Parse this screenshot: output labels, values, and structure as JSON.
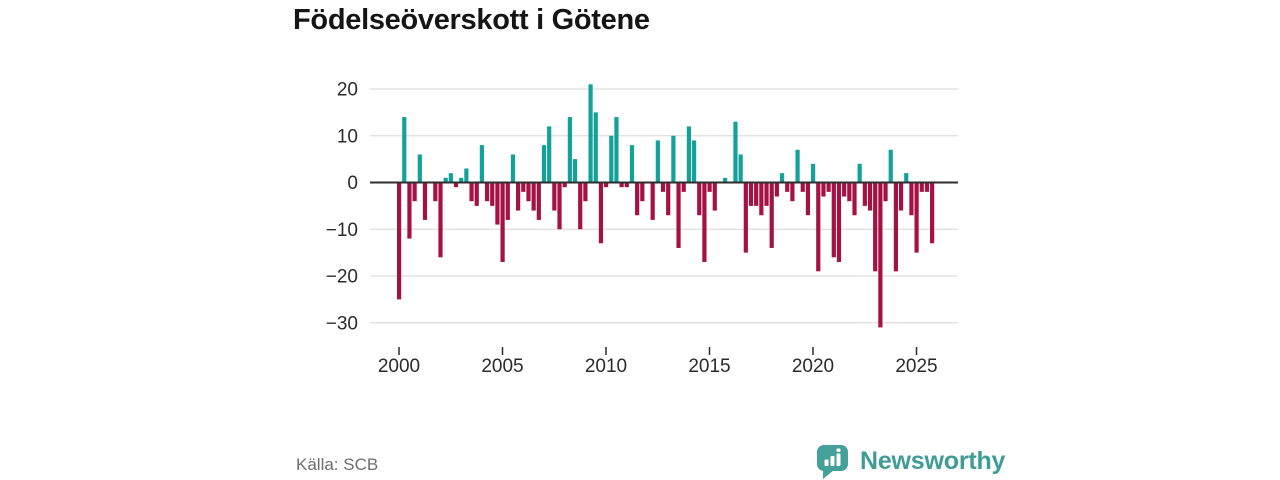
{
  "title": "Födelseöverskott i Götene",
  "source": "Källa: SCB",
  "logo": {
    "text": "Newsworthy"
  },
  "colors": {
    "positive": "#12a299",
    "negative": "#a61145",
    "grid": "#dedede",
    "zero_line": "#2d2d2d",
    "axis_text": "#2b2b2b",
    "source_text": "#6e6e6e",
    "logo_teal": "#45a09a"
  },
  "chart_data": {
    "type": "bar",
    "title": "Födelseöverskott i Götene",
    "frequency": "quarterly",
    "start_year": 2000,
    "start_quarter": 1,
    "end_year": 2025,
    "end_quarter": 4,
    "values": [
      -25,
      14,
      -12,
      -4,
      6,
      -8,
      0,
      -4,
      -16,
      1,
      2,
      -1,
      1,
      3,
      -4,
      -5,
      8,
      -4,
      -5,
      -9,
      -17,
      -8,
      6,
      -6,
      -2,
      -4,
      -6,
      -8,
      8,
      12,
      -6,
      -10,
      -1,
      14,
      5,
      -10,
      -4,
      21,
      15,
      -13,
      -1,
      10,
      14,
      -1,
      -1,
      8,
      -7,
      -4,
      0,
      -8,
      9,
      -2,
      -7,
      10,
      -14,
      -2,
      12,
      9,
      -7,
      -17,
      -2,
      -6,
      0,
      1,
      0,
      13,
      6,
      -15,
      -5,
      -5,
      -7,
      -5,
      -14,
      -3,
      2,
      -2,
      -4,
      7,
      -2,
      -7,
      4,
      -19,
      -3,
      -2,
      -16,
      -17,
      -3,
      -4,
      -7,
      4,
      -5,
      -6,
      -19,
      -31,
      -4,
      7,
      -19,
      -6,
      2,
      -7,
      -15,
      -2,
      -2,
      -13
    ],
    "x_tick_years": [
      2000,
      2005,
      2010,
      2015,
      2020,
      2025
    ],
    "y_ticks": [
      20,
      10,
      0,
      -10,
      -20,
      -30
    ],
    "ylim": [
      -34,
      23
    ],
    "grid": true,
    "legend": false,
    "positive_color": "#12a299",
    "negative_color": "#a61145"
  }
}
